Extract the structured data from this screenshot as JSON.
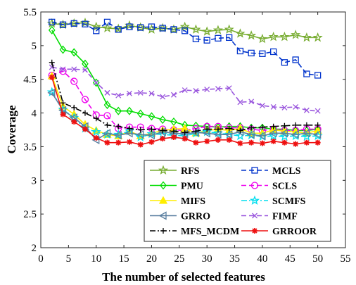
{
  "chart_data": {
    "type": "line",
    "title": "",
    "xlabel": "The number of selected features",
    "ylabel": "Coverage",
    "xlim": [
      0,
      55
    ],
    "ylim": [
      2,
      5.5
    ],
    "xticks": [
      "0",
      "5",
      "10",
      "15",
      "20",
      "25",
      "30",
      "35",
      "40",
      "45",
      "50",
      "55"
    ],
    "yticks": [
      "2",
      "2.5",
      "3",
      "3.5",
      "4",
      "4.5",
      "5",
      "5.5"
    ],
    "grid": false,
    "legend_position": "bottom-right",
    "x": [
      2,
      4,
      6,
      8,
      10,
      12,
      14,
      16,
      18,
      20,
      22,
      24,
      26,
      28,
      30,
      32,
      34,
      36,
      38,
      40,
      42,
      44,
      46,
      48,
      50
    ],
    "series": [
      {
        "name": "RFS",
        "color": "#77ac30",
        "dash": "solid",
        "marker": "star",
        "values": [
          5.33,
          5.31,
          5.33,
          5.34,
          5.28,
          5.26,
          5.25,
          5.3,
          5.27,
          5.24,
          5.26,
          5.24,
          5.28,
          5.24,
          5.21,
          5.23,
          5.24,
          5.18,
          5.15,
          5.1,
          5.13,
          5.13,
          5.16,
          5.12,
          5.12
        ]
      },
      {
        "name": "MCLS",
        "color": "#0033cc",
        "dash": "dashed",
        "marker": "square",
        "values": [
          5.35,
          5.31,
          5.33,
          5.32,
          5.22,
          5.35,
          5.24,
          5.28,
          5.27,
          5.28,
          5.26,
          5.24,
          5.22,
          5.1,
          5.08,
          5.11,
          5.12,
          4.92,
          4.89,
          4.88,
          4.91,
          4.75,
          4.79,
          4.58,
          4.56
        ]
      },
      {
        "name": "PMU",
        "color": "#00dd00",
        "dash": "solid",
        "marker": "diamond",
        "values": [
          5.23,
          4.94,
          4.9,
          4.73,
          4.45,
          4.12,
          4.03,
          4.03,
          3.99,
          3.95,
          3.9,
          3.87,
          3.82,
          3.81,
          3.8,
          3.79,
          3.8,
          3.8,
          3.78,
          3.78,
          3.76,
          3.76,
          3.74,
          3.74,
          3.76
        ]
      },
      {
        "name": "SCLS",
        "color": "#ee00ee",
        "dash": "dashed",
        "marker": "circle",
        "values": [
          4.56,
          4.62,
          4.47,
          4.2,
          3.97,
          3.96,
          3.77,
          3.79,
          3.79,
          3.77,
          3.76,
          3.75,
          3.74,
          3.77,
          3.8,
          3.8,
          3.78,
          3.78,
          3.76,
          3.74,
          3.76,
          3.74,
          3.74,
          3.76,
          3.76
        ]
      },
      {
        "name": "MIFS",
        "color": "#ffee00",
        "dash": "solid",
        "marker": "triangle",
        "values": [
          4.55,
          4.1,
          3.98,
          3.83,
          3.74,
          3.68,
          3.66,
          3.73,
          3.66,
          3.7,
          3.74,
          3.76,
          3.77,
          3.7,
          3.74,
          3.76,
          3.74,
          3.77,
          3.7,
          3.7,
          3.75,
          3.73,
          3.72,
          3.7,
          3.74
        ]
      },
      {
        "name": "SCMFS",
        "color": "#00ddee",
        "dash": "dashdot",
        "marker": "star",
        "values": [
          4.31,
          4.05,
          3.93,
          3.77,
          3.72,
          3.68,
          3.68,
          3.73,
          3.64,
          3.69,
          3.68,
          3.67,
          3.66,
          3.7,
          3.72,
          3.7,
          3.68,
          3.66,
          3.67,
          3.65,
          3.66,
          3.65,
          3.66,
          3.65,
          3.66
        ]
      },
      {
        "name": "GRRO",
        "color": "#5a7fa0",
        "dash": "solid",
        "marker": "lefttriangle",
        "values": [
          4.3,
          4.04,
          3.93,
          3.8,
          3.6,
          3.7,
          3.67,
          3.7,
          3.68,
          3.67,
          3.72,
          3.7,
          3.69,
          3.71,
          3.7,
          3.68,
          3.68,
          3.72,
          3.68,
          3.66,
          3.7,
          3.7,
          3.68,
          3.7,
          3.68
        ]
      },
      {
        "name": "FIMF",
        "color": "#9955dd",
        "dash": "dashed",
        "marker": "x",
        "values": [
          4.68,
          4.65,
          4.65,
          4.64,
          4.45,
          4.3,
          4.26,
          4.29,
          4.3,
          4.29,
          4.24,
          4.27,
          4.34,
          4.33,
          4.35,
          4.36,
          4.37,
          4.16,
          4.17,
          4.11,
          4.09,
          4.08,
          4.09,
          4.04,
          4.03
        ]
      },
      {
        "name": "MFS_MCDM",
        "color": "#000000",
        "dash": "dashdot",
        "marker": "plus",
        "values": [
          4.75,
          4.15,
          4.08,
          4.0,
          3.92,
          3.82,
          3.8,
          3.77,
          3.75,
          3.76,
          3.74,
          3.73,
          3.71,
          3.73,
          3.76,
          3.76,
          3.77,
          3.74,
          3.78,
          3.79,
          3.8,
          3.81,
          3.82,
          3.82,
          3.82
        ]
      },
      {
        "name": "GRROOR",
        "color": "#ee1111",
        "dash": "solid",
        "marker": "asterisk",
        "values": [
          4.53,
          3.98,
          3.87,
          3.76,
          3.63,
          3.56,
          3.56,
          3.57,
          3.53,
          3.57,
          3.62,
          3.64,
          3.62,
          3.56,
          3.58,
          3.6,
          3.6,
          3.55,
          3.56,
          3.55,
          3.58,
          3.56,
          3.54,
          3.56,
          3.56
        ]
      }
    ]
  }
}
